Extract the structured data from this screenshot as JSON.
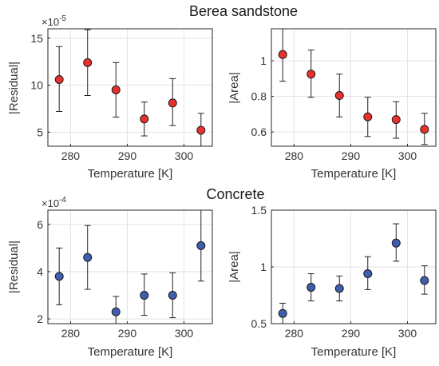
{
  "figure": {
    "titles": [
      "Berea sandstone",
      "Concrete"
    ]
  },
  "chart_data": [
    {
      "type": "scatter",
      "group": "Berea sandstone",
      "ylabel": "|Residual|",
      "xlabel": "Temperature [K]",
      "exponent": {
        "base": "×10",
        "power": "-5"
      },
      "xlim": [
        276,
        305
      ],
      "ylim": [
        3.5,
        16
      ],
      "xticks": [
        "280",
        "290",
        "300"
      ],
      "xtick_values": [
        280,
        290,
        300
      ],
      "yticks": [
        "5",
        "10",
        "15"
      ],
      "ytick_values": [
        5,
        10,
        15
      ],
      "grid": true,
      "marker_color": "#e8312f",
      "x": [
        278,
        283,
        288,
        293,
        298,
        303
      ],
      "y": [
        10.6,
        12.4,
        9.5,
        6.4,
        8.1,
        5.2
      ],
      "err_low": [
        7.2,
        8.9,
        6.6,
        4.6,
        5.7,
        3.4
      ],
      "err_high": [
        14.1,
        15.9,
        12.4,
        8.2,
        10.7,
        7.0
      ]
    },
    {
      "type": "scatter",
      "group": "Berea sandstone",
      "ylabel": "|Area|",
      "xlabel": "Temperature [K]",
      "xlim": [
        276,
        305
      ],
      "ylim": [
        0.52,
        1.18
      ],
      "xticks": [
        "280",
        "290",
        "300"
      ],
      "xtick_values": [
        280,
        290,
        300
      ],
      "yticks": [
        "0.6",
        "0.8",
        "1"
      ],
      "ytick_values": [
        0.6,
        0.8,
        1.0
      ],
      "grid": true,
      "marker_color": "#e8312f",
      "x": [
        278,
        283,
        288,
        293,
        298,
        303
      ],
      "y": [
        1.035,
        0.925,
        0.805,
        0.685,
        0.67,
        0.615
      ],
      "err_low": [
        0.885,
        0.795,
        0.685,
        0.575,
        0.565,
        0.53
      ],
      "err_high": [
        1.19,
        1.06,
        0.925,
        0.795,
        0.77,
        0.705
      ]
    },
    {
      "type": "scatter",
      "group": "Concrete",
      "ylabel": "|Residual|",
      "xlabel": "Temperature [K]",
      "exponent": {
        "base": "×10",
        "power": "-4"
      },
      "xlim": [
        276,
        305
      ],
      "ylim": [
        1.8,
        6.6
      ],
      "xticks": [
        "280",
        "290",
        "300"
      ],
      "xtick_values": [
        280,
        290,
        300
      ],
      "yticks": [
        "2",
        "4",
        "6"
      ],
      "ytick_values": [
        2,
        4,
        6
      ],
      "grid": true,
      "marker_color": "#3f5fae",
      "x": [
        278,
        283,
        288,
        293,
        298,
        303
      ],
      "y": [
        3.8,
        4.6,
        2.3,
        3.0,
        3.0,
        5.1
      ],
      "err_low": [
        2.6,
        3.25,
        1.8,
        2.15,
        2.05,
        3.6
      ],
      "err_high": [
        5.0,
        5.95,
        2.95,
        3.9,
        3.95,
        6.65
      ]
    },
    {
      "type": "scatter",
      "group": "Concrete",
      "ylabel": "|Area|",
      "xlabel": "Temperature [K]",
      "xlim": [
        276,
        305
      ],
      "ylim": [
        0.5,
        1.5
      ],
      "xticks": [
        "280",
        "290",
        "300"
      ],
      "xtick_values": [
        280,
        290,
        300
      ],
      "yticks": [
        "0.5",
        "1",
        "1.5"
      ],
      "ytick_values": [
        0.5,
        1.0,
        1.5
      ],
      "grid": true,
      "marker_color": "#3f5fae",
      "x": [
        278,
        283,
        288,
        293,
        298,
        303
      ],
      "y": [
        0.59,
        0.82,
        0.81,
        0.94,
        1.21,
        0.88
      ],
      "err_low": [
        0.5,
        0.7,
        0.7,
        0.8,
        1.05,
        0.76
      ],
      "err_high": [
        0.68,
        0.94,
        0.92,
        1.09,
        1.38,
        1.01
      ]
    }
  ]
}
